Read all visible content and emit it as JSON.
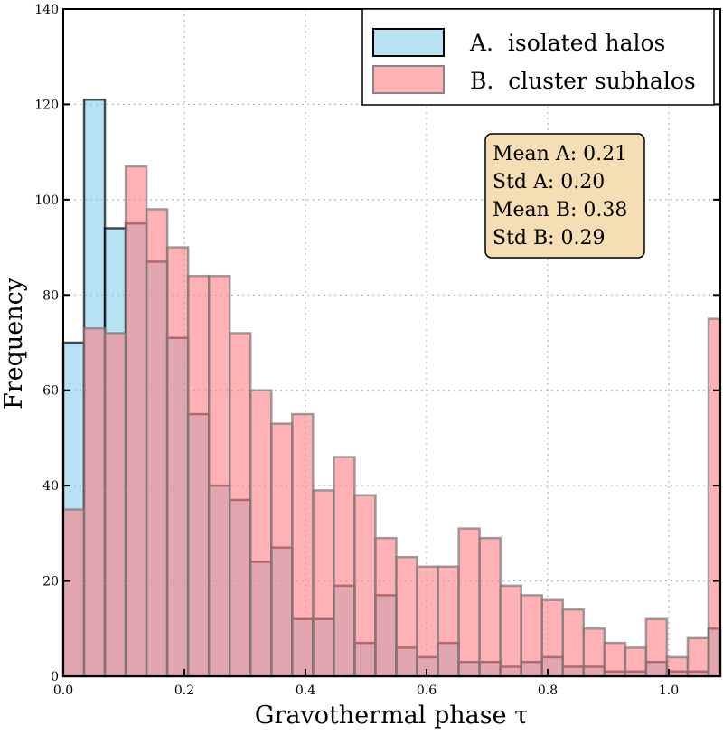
{
  "chart_data": {
    "type": "bar",
    "subtype": "overlaid-histogram",
    "xlabel": "Gravothermal phase τ",
    "ylabel": "Frequency",
    "xlim": [
      0,
      1.1
    ],
    "ylim": [
      0,
      140
    ],
    "xticks": [
      "0.0",
      "0.2",
      "0.4",
      "0.6",
      "0.8",
      "1.0"
    ],
    "xtick_values": [
      0,
      0.2,
      0.4,
      0.6,
      0.8,
      1.0
    ],
    "yticks": [
      "0",
      "20",
      "40",
      "60",
      "80",
      "100",
      "120",
      "140"
    ],
    "ytick_values": [
      0,
      20,
      40,
      60,
      80,
      100,
      120,
      140
    ],
    "grid": true,
    "bin_start": 0,
    "bin_width": 0.034375,
    "series": [
      {
        "name": "A.  isolated halos",
        "color": "#87ceeb",
        "values": [
          70,
          121,
          94,
          95,
          87,
          71,
          55,
          40,
          37,
          24,
          27,
          12,
          12,
          19,
          7,
          17,
          6,
          4,
          7,
          3,
          3,
          2,
          3,
          4,
          2,
          2,
          1,
          1,
          3,
          1,
          1,
          10
        ]
      },
      {
        "name": "B.  cluster subhalos",
        "color": "#ff7f86",
        "values": [
          35,
          73,
          72,
          107,
          98,
          90,
          84,
          84,
          72,
          60,
          53,
          55,
          39,
          46,
          38,
          29,
          25,
          23,
          23,
          31,
          29,
          19,
          17,
          16,
          14,
          10,
          7,
          6,
          12,
          4,
          8,
          75
        ]
      }
    ],
    "legend_position": "top-right",
    "annotation": [
      "Mean A: 0.21",
      "Std A: 0.20",
      "Mean B: 0.38",
      "Std B: 0.29"
    ]
  }
}
